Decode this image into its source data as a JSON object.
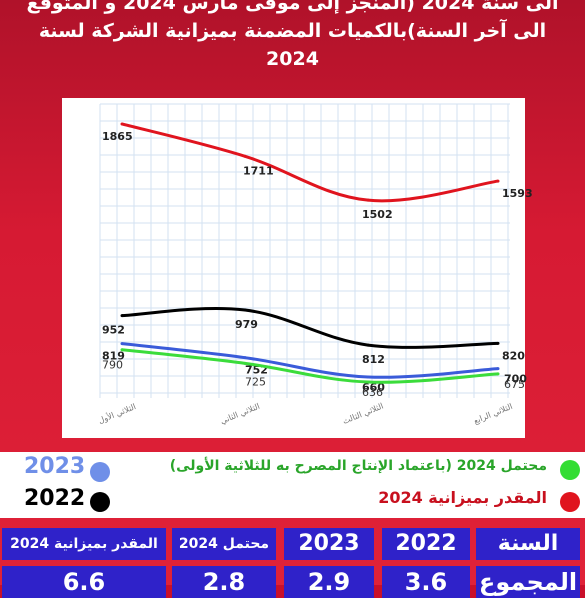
{
  "title_lines": [
    "الى سنة 2024 (المنجز إلى موفى مارس 2024 و المتوقع",
    "الى آخر السنة)بالكميات المضمنة بميزانية الشركة لسنة",
    "2024"
  ],
  "chart_data": {
    "type": "line",
    "title": "",
    "xlabel": "",
    "ylabel": "",
    "categories": [
      "الثلاثي الأول",
      "الثلاثي الثاني",
      "الثلاثي الثالث",
      "الثلاثي الرابع"
    ],
    "ylim": [
      560,
      1960
    ],
    "grid": true,
    "series": [
      {
        "name": "المقدر بميزانية 2024",
        "color": "#e0141e",
        "values": [
          1865,
          1711,
          1502,
          1593
        ]
      },
      {
        "name": "2022",
        "color": "#000000",
        "values": [
          952,
          979,
          812,
          820
        ]
      },
      {
        "name": "2023",
        "color": "#3a5bd9",
        "values": [
          819,
          752,
          660,
          700
        ]
      },
      {
        "name": "محتمل 2024 (باعتماد الإنتاج المصرح به للثلاثية الأولى)",
        "color": "#3bdc3b",
        "values": [
          790,
          725,
          636,
          675
        ]
      }
    ]
  },
  "legend": {
    "green": {
      "label": "محتمل 2024 (باعتماد الإنتاج المصرح به للثلاثية الأولى)",
      "color": "#33dd33"
    },
    "red": {
      "label": "المقدر بميزانية  2024",
      "color": "#e0141e"
    },
    "blue": {
      "label": "2023",
      "color": "#6f8fe8"
    },
    "black": {
      "label": "2022",
      "color": "#000000"
    }
  },
  "table": {
    "headers": [
      "السنة",
      "2022",
      "2023",
      "محتمل 2024",
      "المقدر بميزانية  2024"
    ],
    "row_label": "المجموع",
    "values": [
      "3.6",
      "2.9",
      "2.8",
      "6.6"
    ]
  }
}
